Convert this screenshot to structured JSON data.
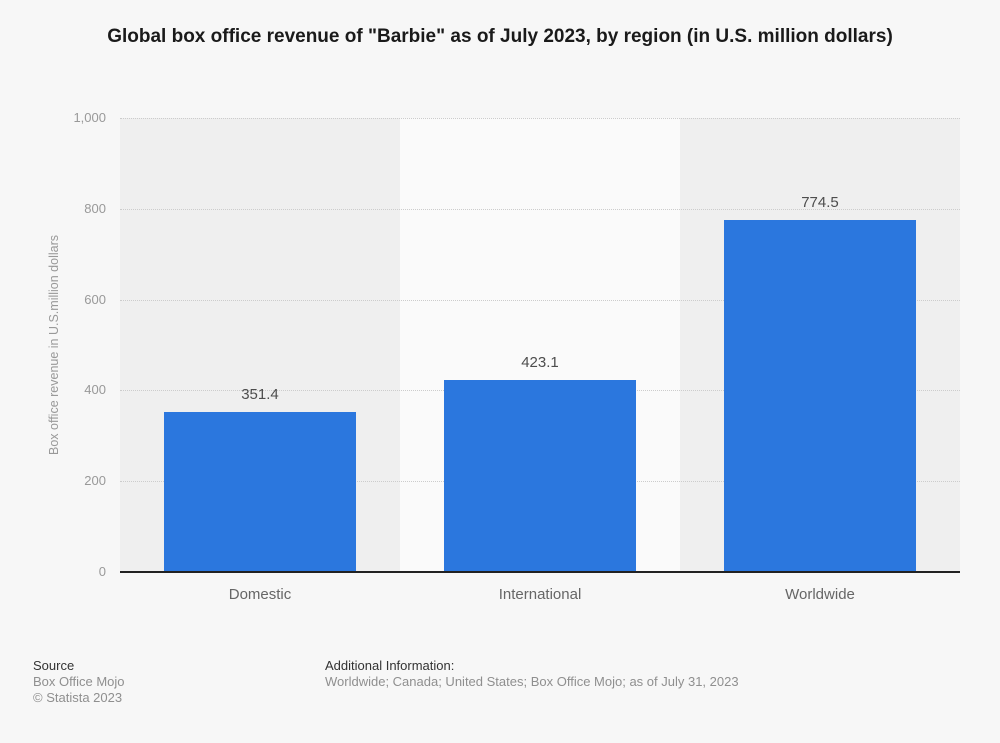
{
  "title": "Global box office revenue of \"Barbie\" as of July 2023, by region (in U.S. million dollars)",
  "chart_data": {
    "type": "bar",
    "categories": [
      "Domestic",
      "International",
      "Worldwide"
    ],
    "values": [
      351.4,
      423.1,
      774.5
    ],
    "value_labels": [
      "351.4",
      "423.1",
      "774.5"
    ],
    "title": "Global box office revenue of \"Barbie\" as of July 2023, by region (in U.S. million dollars)",
    "xlabel": "",
    "ylabel": "Box office revenue in U.S.million dollars",
    "ylim": [
      0,
      1000
    ],
    "yticks": [
      0,
      200,
      400,
      600,
      800,
      1000
    ],
    "ytick_labels": [
      "0",
      "200",
      "400",
      "600",
      "800",
      "1,000"
    ],
    "grid": "horizontal-dotted",
    "legend": "none",
    "bar_color": "#2b77de",
    "band_colors": [
      "#efefef",
      "#fafafa",
      "#efefef"
    ]
  },
  "footer": {
    "source_label": "Source",
    "source_value": "Box Office Mojo",
    "copyright": "© Statista 2023",
    "additional_label": "Additional Information:",
    "additional_value": "Worldwide; Canada; United States; Box Office Mojo; as of July 31, 2023"
  }
}
